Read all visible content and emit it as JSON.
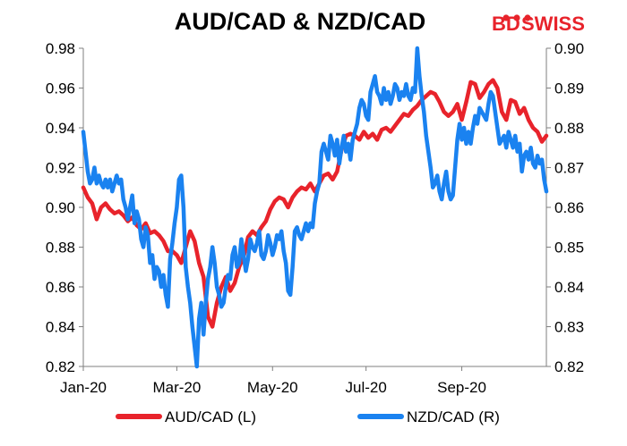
{
  "chart_data": {
    "type": "line",
    "title": "AUD/CAD  & NZD/CAD",
    "x_ticks": [
      "Jan-20",
      "Mar-20",
      "May-20",
      "Jul-20",
      "Sep-20"
    ],
    "x_tick_index": [
      0,
      42,
      85,
      127,
      170
    ],
    "y_left": {
      "range": [
        0.82,
        0.98
      ],
      "ticks": [
        "0.82",
        "0.84",
        "0.86",
        "0.88",
        "0.90",
        "0.92",
        "0.94",
        "0.96",
        "0.98"
      ]
    },
    "y_right": {
      "range": [
        0.82,
        0.9
      ],
      "ticks": [
        "0.82",
        "0.83",
        "0.84",
        "0.85",
        "0.86",
        "0.87",
        "0.88",
        "0.89",
        "0.90"
      ]
    },
    "grid": false,
    "legend_position": "bottom",
    "series": [
      {
        "name": "AUD/CAD (L)",
        "axis": "left",
        "color": "#e8232b",
        "points": [
          [
            0,
            0.91
          ],
          [
            2,
            0.905
          ],
          [
            4,
            0.902
          ],
          [
            6,
            0.894
          ],
          [
            8,
            0.9
          ],
          [
            10,
            0.902
          ],
          [
            12,
            0.899
          ],
          [
            14,
            0.897
          ],
          [
            16,
            0.898
          ],
          [
            18,
            0.896
          ],
          [
            20,
            0.893
          ],
          [
            22,
            0.895
          ],
          [
            24,
            0.891
          ],
          [
            26,
            0.889
          ],
          [
            28,
            0.892
          ],
          [
            30,
            0.887
          ],
          [
            32,
            0.888
          ],
          [
            34,
            0.886
          ],
          [
            36,
            0.883
          ],
          [
            38,
            0.878
          ],
          [
            40,
            0.878
          ],
          [
            42,
            0.876
          ],
          [
            44,
            0.872
          ],
          [
            46,
            0.88
          ],
          [
            48,
            0.888
          ],
          [
            50,
            0.883
          ],
          [
            52,
            0.872
          ],
          [
            54,
            0.865
          ],
          [
            56,
            0.845
          ],
          [
            58,
            0.84
          ],
          [
            60,
            0.852
          ],
          [
            62,
            0.86
          ],
          [
            64,
            0.865
          ],
          [
            66,
            0.858
          ],
          [
            68,
            0.862
          ],
          [
            70,
            0.87
          ],
          [
            72,
            0.875
          ],
          [
            74,
            0.885
          ],
          [
            76,
            0.888
          ],
          [
            78,
            0.886
          ],
          [
            80,
            0.89
          ],
          [
            82,
            0.893
          ],
          [
            84,
            0.899
          ],
          [
            86,
            0.903
          ],
          [
            88,
            0.905
          ],
          [
            90,
            0.904
          ],
          [
            92,
            0.9
          ],
          [
            94,
            0.905
          ],
          [
            96,
            0.908
          ],
          [
            98,
            0.91
          ],
          [
            100,
            0.909
          ],
          [
            102,
            0.912
          ],
          [
            104,
            0.908
          ],
          [
            106,
            0.912
          ],
          [
            108,
            0.916
          ],
          [
            110,
            0.917
          ],
          [
            112,
            0.914
          ],
          [
            114,
            0.918
          ],
          [
            116,
            0.929
          ],
          [
            118,
            0.936
          ],
          [
            120,
            0.937
          ],
          [
            122,
            0.936
          ],
          [
            124,
            0.934
          ],
          [
            126,
            0.938
          ],
          [
            128,
            0.935
          ],
          [
            130,
            0.937
          ],
          [
            132,
            0.934
          ],
          [
            134,
            0.939
          ],
          [
            136,
            0.94
          ],
          [
            138,
            0.938
          ],
          [
            140,
            0.941
          ],
          [
            142,
            0.944
          ],
          [
            144,
            0.947
          ],
          [
            146,
            0.946
          ],
          [
            148,
            0.949
          ],
          [
            150,
            0.951
          ],
          [
            152,
            0.954
          ],
          [
            154,
            0.956
          ],
          [
            156,
            0.958
          ],
          [
            158,
            0.957
          ],
          [
            160,
            0.953
          ],
          [
            162,
            0.948
          ],
          [
            164,
            0.946
          ],
          [
            166,
            0.948
          ],
          [
            168,
            0.952
          ],
          [
            170,
            0.944
          ],
          [
            172,
            0.953
          ],
          [
            174,
            0.963
          ],
          [
            176,
            0.962
          ],
          [
            178,
            0.955
          ],
          [
            180,
            0.958
          ],
          [
            182,
            0.962
          ],
          [
            184,
            0.964
          ],
          [
            186,
            0.96
          ],
          [
            188,
            0.948
          ],
          [
            190,
            0.944
          ],
          [
            192,
            0.954
          ],
          [
            194,
            0.953
          ],
          [
            196,
            0.947
          ],
          [
            198,
            0.95
          ],
          [
            200,
            0.944
          ],
          [
            202,
            0.94
          ],
          [
            204,
            0.938
          ],
          [
            206,
            0.933
          ],
          [
            208,
            0.936
          ]
        ]
      },
      {
        "name": "NZD/CAD (R)",
        "axis": "right",
        "color": "#1a82f0",
        "points": [
          [
            0,
            0.879
          ],
          [
            1,
            0.874
          ],
          [
            2,
            0.869
          ],
          [
            3,
            0.866
          ],
          [
            4,
            0.867
          ],
          [
            5,
            0.87
          ],
          [
            6,
            0.866
          ],
          [
            7,
            0.868
          ],
          [
            8,
            0.866
          ],
          [
            9,
            0.865
          ],
          [
            10,
            0.867
          ],
          [
            11,
            0.865
          ],
          [
            12,
            0.867
          ],
          [
            13,
            0.864
          ],
          [
            14,
            0.866
          ],
          [
            15,
            0.868
          ],
          [
            16,
            0.866
          ],
          [
            17,
            0.867
          ],
          [
            18,
            0.862
          ],
          [
            19,
            0.86
          ],
          [
            20,
            0.857
          ],
          [
            21,
            0.86
          ],
          [
            22,
            0.863
          ],
          [
            23,
            0.856
          ],
          [
            24,
            0.859
          ],
          [
            25,
            0.857
          ],
          [
            26,
            0.852
          ],
          [
            27,
            0.85
          ],
          [
            28,
            0.855
          ],
          [
            29,
            0.853
          ],
          [
            30,
            0.846
          ],
          [
            31,
            0.848
          ],
          [
            32,
            0.842
          ],
          [
            33,
            0.845
          ],
          [
            34,
            0.844
          ],
          [
            35,
            0.84
          ],
          [
            36,
            0.843
          ],
          [
            37,
            0.838
          ],
          [
            38,
            0.835
          ],
          [
            39,
            0.847
          ],
          [
            40,
            0.851
          ],
          [
            41,
            0.856
          ],
          [
            42,
            0.86
          ],
          [
            43,
            0.867
          ],
          [
            44,
            0.868
          ],
          [
            45,
            0.86
          ],
          [
            46,
            0.845
          ],
          [
            47,
            0.84
          ],
          [
            48,
            0.836
          ],
          [
            49,
            0.83
          ],
          [
            50,
            0.825
          ],
          [
            51,
            0.82
          ],
          [
            52,
            0.832
          ],
          [
            53,
            0.836
          ],
          [
            54,
            0.828
          ],
          [
            55,
            0.836
          ],
          [
            56,
            0.842
          ],
          [
            57,
            0.845
          ],
          [
            58,
            0.85
          ],
          [
            59,
            0.846
          ],
          [
            60,
            0.84
          ],
          [
            61,
            0.838
          ],
          [
            62,
            0.835
          ],
          [
            63,
            0.836
          ],
          [
            64,
            0.84
          ],
          [
            65,
            0.843
          ],
          [
            66,
            0.842
          ],
          [
            67,
            0.848
          ],
          [
            68,
            0.85
          ],
          [
            69,
            0.845
          ],
          [
            70,
            0.846
          ],
          [
            71,
            0.852
          ],
          [
            72,
            0.848
          ],
          [
            73,
            0.844
          ],
          [
            74,
            0.847
          ],
          [
            75,
            0.852
          ],
          [
            76,
            0.85
          ],
          [
            77,
            0.849
          ],
          [
            78,
            0.851
          ],
          [
            79,
            0.854
          ],
          [
            80,
            0.848
          ],
          [
            81,
            0.847
          ],
          [
            82,
            0.849
          ],
          [
            83,
            0.853
          ],
          [
            84,
            0.851
          ],
          [
            85,
            0.848
          ],
          [
            86,
            0.85
          ],
          [
            87,
            0.853
          ],
          [
            88,
            0.852
          ],
          [
            89,
            0.854
          ],
          [
            90,
            0.849
          ],
          [
            91,
            0.846
          ],
          [
            92,
            0.839
          ],
          [
            93,
            0.838
          ],
          [
            94,
            0.845
          ],
          [
            95,
            0.854
          ],
          [
            96,
            0.855
          ],
          [
            97,
            0.853
          ],
          [
            98,
            0.852
          ],
          [
            99,
            0.854
          ],
          [
            100,
            0.856
          ],
          [
            101,
            0.854
          ],
          [
            102,
            0.856
          ],
          [
            103,
            0.855
          ],
          [
            104,
            0.861
          ],
          [
            105,
            0.864
          ],
          [
            106,
            0.866
          ],
          [
            107,
            0.874
          ],
          [
            108,
            0.876
          ],
          [
            109,
            0.874
          ],
          [
            110,
            0.872
          ],
          [
            111,
            0.878
          ],
          [
            112,
            0.876
          ],
          [
            113,
            0.873
          ],
          [
            114,
            0.877
          ],
          [
            115,
            0.871
          ],
          [
            116,
            0.875
          ],
          [
            117,
            0.878
          ],
          [
            118,
            0.874
          ],
          [
            119,
            0.876
          ],
          [
            120,
            0.872
          ],
          [
            121,
            0.877
          ],
          [
            122,
            0.879
          ],
          [
            123,
            0.881
          ],
          [
            124,
            0.885
          ],
          [
            125,
            0.887
          ],
          [
            126,
            0.886
          ],
          [
            127,
            0.883
          ],
          [
            128,
            0.882
          ],
          [
            129,
            0.889
          ],
          [
            130,
            0.891
          ],
          [
            131,
            0.893
          ],
          [
            132,
            0.889
          ],
          [
            133,
            0.888
          ],
          [
            134,
            0.886
          ],
          [
            135,
            0.89
          ],
          [
            136,
            0.887
          ],
          [
            137,
            0.889
          ],
          [
            138,
            0.886
          ],
          [
            139,
            0.888
          ],
          [
            140,
            0.891
          ],
          [
            141,
            0.89
          ],
          [
            142,
            0.887
          ],
          [
            143,
            0.889
          ],
          [
            144,
            0.888
          ],
          [
            145,
            0.891
          ],
          [
            146,
            0.888
          ],
          [
            147,
            0.887
          ],
          [
            148,
            0.89
          ],
          [
            149,
            0.889
          ],
          [
            150,
            0.9
          ],
          [
            151,
            0.893
          ],
          [
            152,
            0.888
          ],
          [
            153,
            0.884
          ],
          [
            154,
            0.878
          ],
          [
            155,
            0.874
          ],
          [
            156,
            0.87
          ],
          [
            157,
            0.865
          ],
          [
            158,
            0.866
          ],
          [
            159,
            0.868
          ],
          [
            160,
            0.864
          ],
          [
            161,
            0.862
          ],
          [
            162,
            0.866
          ],
          [
            163,
            0.869
          ],
          [
            164,
            0.864
          ],
          [
            165,
            0.862
          ],
          [
            166,
            0.863
          ],
          [
            167,
            0.87
          ],
          [
            168,
            0.877
          ],
          [
            169,
            0.881
          ],
          [
            170,
            0.877
          ],
          [
            171,
            0.88
          ],
          [
            172,
            0.876
          ],
          [
            173,
            0.879
          ],
          [
            174,
            0.876
          ],
          [
            175,
            0.88
          ],
          [
            176,
            0.883
          ],
          [
            177,
            0.881
          ],
          [
            178,
            0.885
          ],
          [
            179,
            0.884
          ],
          [
            180,
            0.883
          ],
          [
            181,
            0.882
          ],
          [
            182,
            0.886
          ],
          [
            183,
            0.889
          ],
          [
            184,
            0.888
          ],
          [
            185,
            0.884
          ],
          [
            186,
            0.88
          ],
          [
            187,
            0.876
          ],
          [
            188,
            0.877
          ],
          [
            189,
            0.878
          ],
          [
            190,
            0.875
          ],
          [
            191,
            0.879
          ],
          [
            192,
            0.877
          ],
          [
            193,
            0.875
          ],
          [
            194,
            0.878
          ],
          [
            195,
            0.874
          ],
          [
            196,
            0.876
          ],
          [
            197,
            0.869
          ],
          [
            198,
            0.873
          ],
          [
            199,
            0.874
          ],
          [
            200,
            0.872
          ],
          [
            201,
            0.875
          ],
          [
            202,
            0.871
          ],
          [
            203,
            0.87
          ],
          [
            204,
            0.873
          ],
          [
            205,
            0.871
          ],
          [
            206,
            0.872
          ],
          [
            207,
            0.867
          ],
          [
            208,
            0.864
          ]
        ]
      }
    ]
  },
  "logo": {
    "text_bd": "BD",
    "text_swiss": "SWISS",
    "color_bd": "#e8232b",
    "color_swiss": "#e8232b"
  },
  "x_max_index": 208
}
